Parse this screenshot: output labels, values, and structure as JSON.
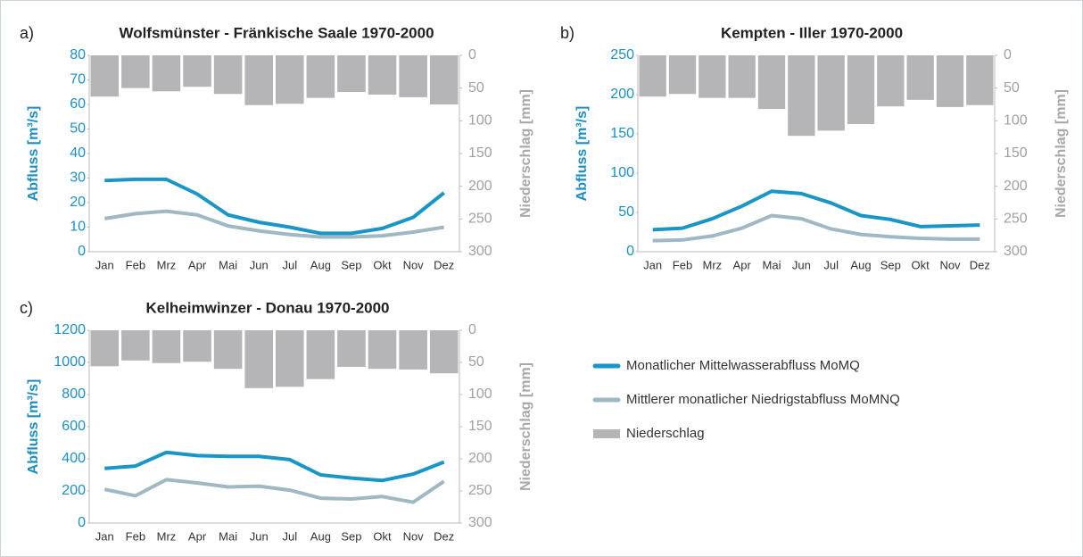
{
  "chart_data": [
    {
      "type": "combo",
      "panel": "a)",
      "title": "Wolfsmünster - Fränkische Saale 1970-2000",
      "ylabel": "Abfluss [m³/s]",
      "y2label": "Niederschlag [mm]",
      "categories": [
        "Jan",
        "Feb",
        "Mrz",
        "Apr",
        "Mai",
        "Jun",
        "Jul",
        "Aug",
        "Sep",
        "Okt",
        "Nov",
        "Dez"
      ],
      "ylim": [
        0,
        80
      ],
      "yticks": [
        0,
        10,
        20,
        30,
        40,
        50,
        60,
        70,
        80
      ],
      "y2lim": [
        0,
        300
      ],
      "y2ticks": [
        0,
        50,
        100,
        150,
        200,
        250,
        300
      ],
      "y2_inverted": true,
      "series": [
        {
          "name": "Monatlicher Mittelwasserabfluss MoMQ",
          "type": "line",
          "color": "#1a95c8",
          "values": [
            29,
            29.5,
            29.5,
            23.5,
            15,
            12,
            10,
            7.5,
            7.5,
            9.5,
            14,
            24
          ]
        },
        {
          "name": "Mittlerer monatlicher Niedrigstabfluss MoMNQ",
          "type": "line",
          "color": "#9fb8c4",
          "values": [
            13.5,
            15.5,
            16.5,
            15,
            10.5,
            8.5,
            7,
            6,
            6,
            6.5,
            8,
            10
          ]
        },
        {
          "name": "Niederschlag",
          "type": "bar",
          "axis": "y2",
          "color": "#b5b5b8",
          "values": [
            63,
            50,
            55,
            48,
            59,
            76,
            74,
            65,
            56,
            60,
            64,
            75
          ]
        }
      ]
    },
    {
      "type": "combo",
      "panel": "b)",
      "title": "Kempten - Iller 1970-2000",
      "ylabel": "Abfluss [m³/s]",
      "y2label": "Niederschlag [mm]",
      "categories": [
        "Jan",
        "Feb",
        "Mrz",
        "Apr",
        "Mai",
        "Jun",
        "Jul",
        "Aug",
        "Sep",
        "Okt",
        "Nov",
        "Dez"
      ],
      "ylim": [
        0,
        250
      ],
      "yticks": [
        0,
        50,
        100,
        150,
        200,
        250
      ],
      "y2lim": [
        0,
        300
      ],
      "y2ticks": [
        0,
        50,
        100,
        150,
        200,
        250,
        300
      ],
      "y2_inverted": true,
      "series": [
        {
          "type": "line",
          "color": "#1a95c8",
          "values": [
            28,
            30,
            42,
            58,
            77,
            74,
            62,
            46,
            41,
            32,
            33,
            34
          ]
        },
        {
          "type": "line",
          "color": "#9fb8c4",
          "values": [
            14,
            15,
            20,
            30,
            46,
            42,
            29,
            22,
            19,
            17,
            16,
            16
          ]
        },
        {
          "type": "bar",
          "axis": "y2",
          "color": "#b5b5b8",
          "values": [
            63,
            59,
            65,
            65,
            82,
            123,
            115,
            105,
            78,
            68,
            79,
            76
          ]
        }
      ]
    },
    {
      "type": "combo",
      "panel": "c)",
      "title": "Kelheimwinzer - Donau 1970-2000",
      "ylabel": "Abfluss [m³/s]",
      "y2label": "Niederschlag [mm]",
      "categories": [
        "Jan",
        "Feb",
        "Mrz",
        "Apr",
        "Mai",
        "Jun",
        "Jul",
        "Aug",
        "Sep",
        "Okt",
        "Nov",
        "Dez"
      ],
      "ylim": [
        0,
        1200
      ],
      "yticks": [
        0,
        200,
        400,
        600,
        800,
        1000,
        1200
      ],
      "y2lim": [
        0,
        300
      ],
      "y2ticks": [
        0,
        50,
        100,
        150,
        200,
        250,
        300
      ],
      "y2_inverted": true,
      "series": [
        {
          "type": "line",
          "color": "#1a95c8",
          "values": [
            340,
            355,
            440,
            420,
            415,
            415,
            395,
            300,
            280,
            265,
            305,
            380
          ]
        },
        {
          "type": "line",
          "color": "#9fb8c4",
          "values": [
            210,
            170,
            270,
            250,
            225,
            230,
            205,
            155,
            150,
            165,
            130,
            260
          ]
        },
        {
          "type": "bar",
          "axis": "y2",
          "color": "#b5b5b8",
          "values": [
            56,
            47,
            51,
            49,
            60,
            90,
            88,
            76,
            57,
            60,
            61,
            67
          ]
        }
      ]
    }
  ]
}
